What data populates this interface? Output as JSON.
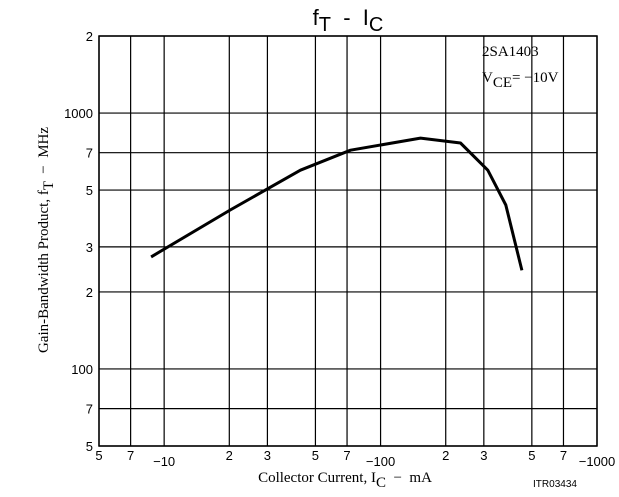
{
  "chart_data": {
    "type": "line",
    "title": {
      "f": "f",
      "fsub": "T",
      "mid": "  -  I",
      "isub": "C"
    },
    "annotation": {
      "part": "2SA1403",
      "v": "V",
      "vsub": "CE",
      "vrest": "= −10V"
    },
    "y_label": {
      "main": "Gain-Bandwidth Product, f",
      "sub": "T",
      "rest": "  −  MHz"
    },
    "x_label": {
      "main": "Collector Current, I",
      "sub": "C",
      "rest": "  −  mA"
    },
    "code": "ITR03434",
    "log_x": true,
    "log_y": true,
    "grid": true,
    "xlim": [
      -5,
      -1000
    ],
    "ylim": [
      50,
      2000
    ],
    "xticks": [
      {
        "value": -5,
        "label": "5"
      },
      {
        "value": -7,
        "label": "7"
      },
      {
        "value": -10,
        "label": "−10"
      },
      {
        "value": -20,
        "label": "2"
      },
      {
        "value": -30,
        "label": "3"
      },
      {
        "value": -50,
        "label": "5"
      },
      {
        "value": -70,
        "label": "7"
      },
      {
        "value": -100,
        "label": "−100"
      },
      {
        "value": -200,
        "label": "2"
      },
      {
        "value": -300,
        "label": "3"
      },
      {
        "value": -500,
        "label": "5"
      },
      {
        "value": -700,
        "label": "7"
      },
      {
        "value": -1000,
        "label": "−1000"
      }
    ],
    "yticks": [
      {
        "value": 50,
        "label": "5"
      },
      {
        "value": 70,
        "label": "7"
      },
      100,
      {
        "value": 200,
        "label": "2"
      },
      {
        "value": 300,
        "label": "3"
      },
      {
        "value": 500,
        "label": "5"
      },
      {
        "value": 700,
        "label": "7"
      },
      1000,
      {
        "value": 2000,
        "label": "2"
      }
    ],
    "x": [
      -8.7,
      -20.2,
      -42.6,
      -72.6,
      -153,
      -234,
      -313,
      -379,
      -450
    ],
    "series": [
      {
        "color": "#000000",
        "values": [
          274,
          418,
          598,
          716,
          798,
          764,
          598,
          437,
          243
        ]
      }
    ]
  }
}
